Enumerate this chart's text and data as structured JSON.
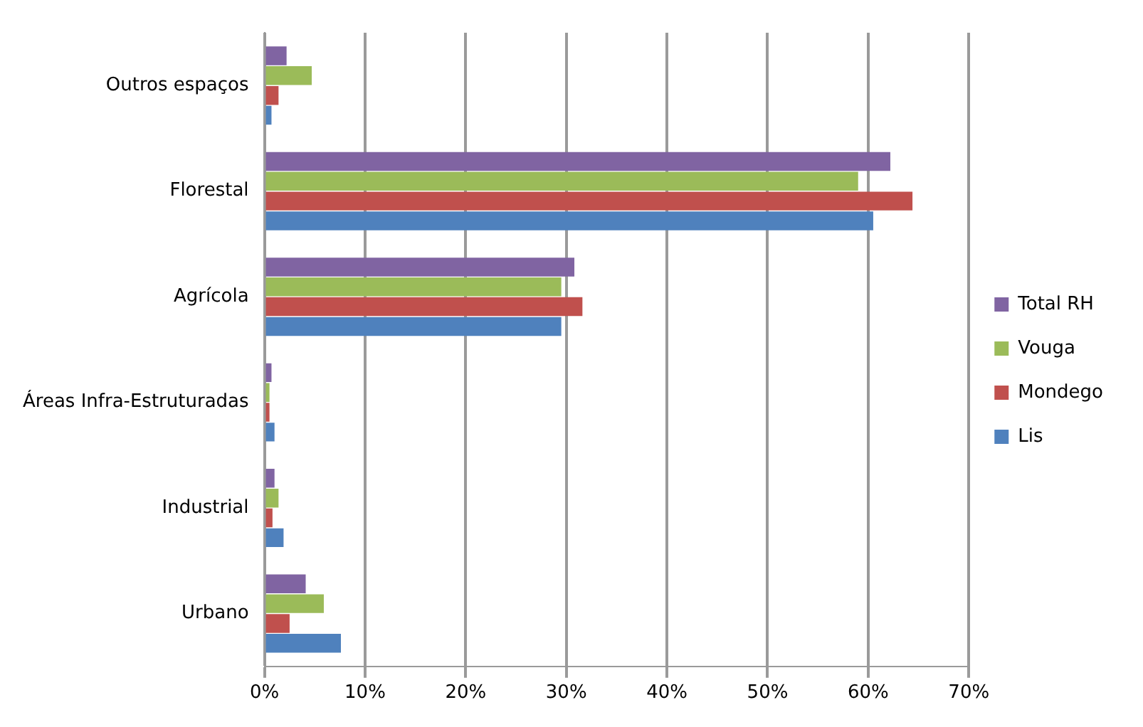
{
  "chart_data": {
    "type": "bar",
    "orientation": "horizontal",
    "categories": [
      "Outros espaços",
      "Florestal",
      "Agrícola",
      "Áreas Infra-Estruturadas",
      "Industrial",
      "Urbano"
    ],
    "series": [
      {
        "name": "Total RH",
        "color": "#8064a2",
        "values": [
          2.2,
          62.2,
          30.8,
          0.7,
          1.0,
          4.1
        ]
      },
      {
        "name": "Vouga",
        "color": "#9bbb59",
        "values": [
          4.7,
          59,
          29.5,
          0.5,
          1.4,
          5.9
        ]
      },
      {
        "name": "Mondego",
        "color": "#c0504d",
        "values": [
          1.4,
          64.4,
          31.6,
          0.5,
          0.8,
          2.5
        ]
      },
      {
        "name": "Lis",
        "color": "#4f81bd",
        "values": [
          0.7,
          60.5,
          29.5,
          1.0,
          1.9,
          7.6
        ]
      }
    ],
    "xlim": [
      0,
      70
    ],
    "xticks": [
      {
        "value": 0,
        "label": "0%"
      },
      {
        "value": 10,
        "label": "10%"
      },
      {
        "value": 20,
        "label": "20%"
      },
      {
        "value": 30,
        "label": "30%"
      },
      {
        "value": 40,
        "label": "40%"
      },
      {
        "value": 50,
        "label": "50%"
      },
      {
        "value": 60,
        "label": "60%"
      },
      {
        "value": 70,
        "label": "70%"
      }
    ],
    "grid": "x",
    "legend": "right"
  }
}
